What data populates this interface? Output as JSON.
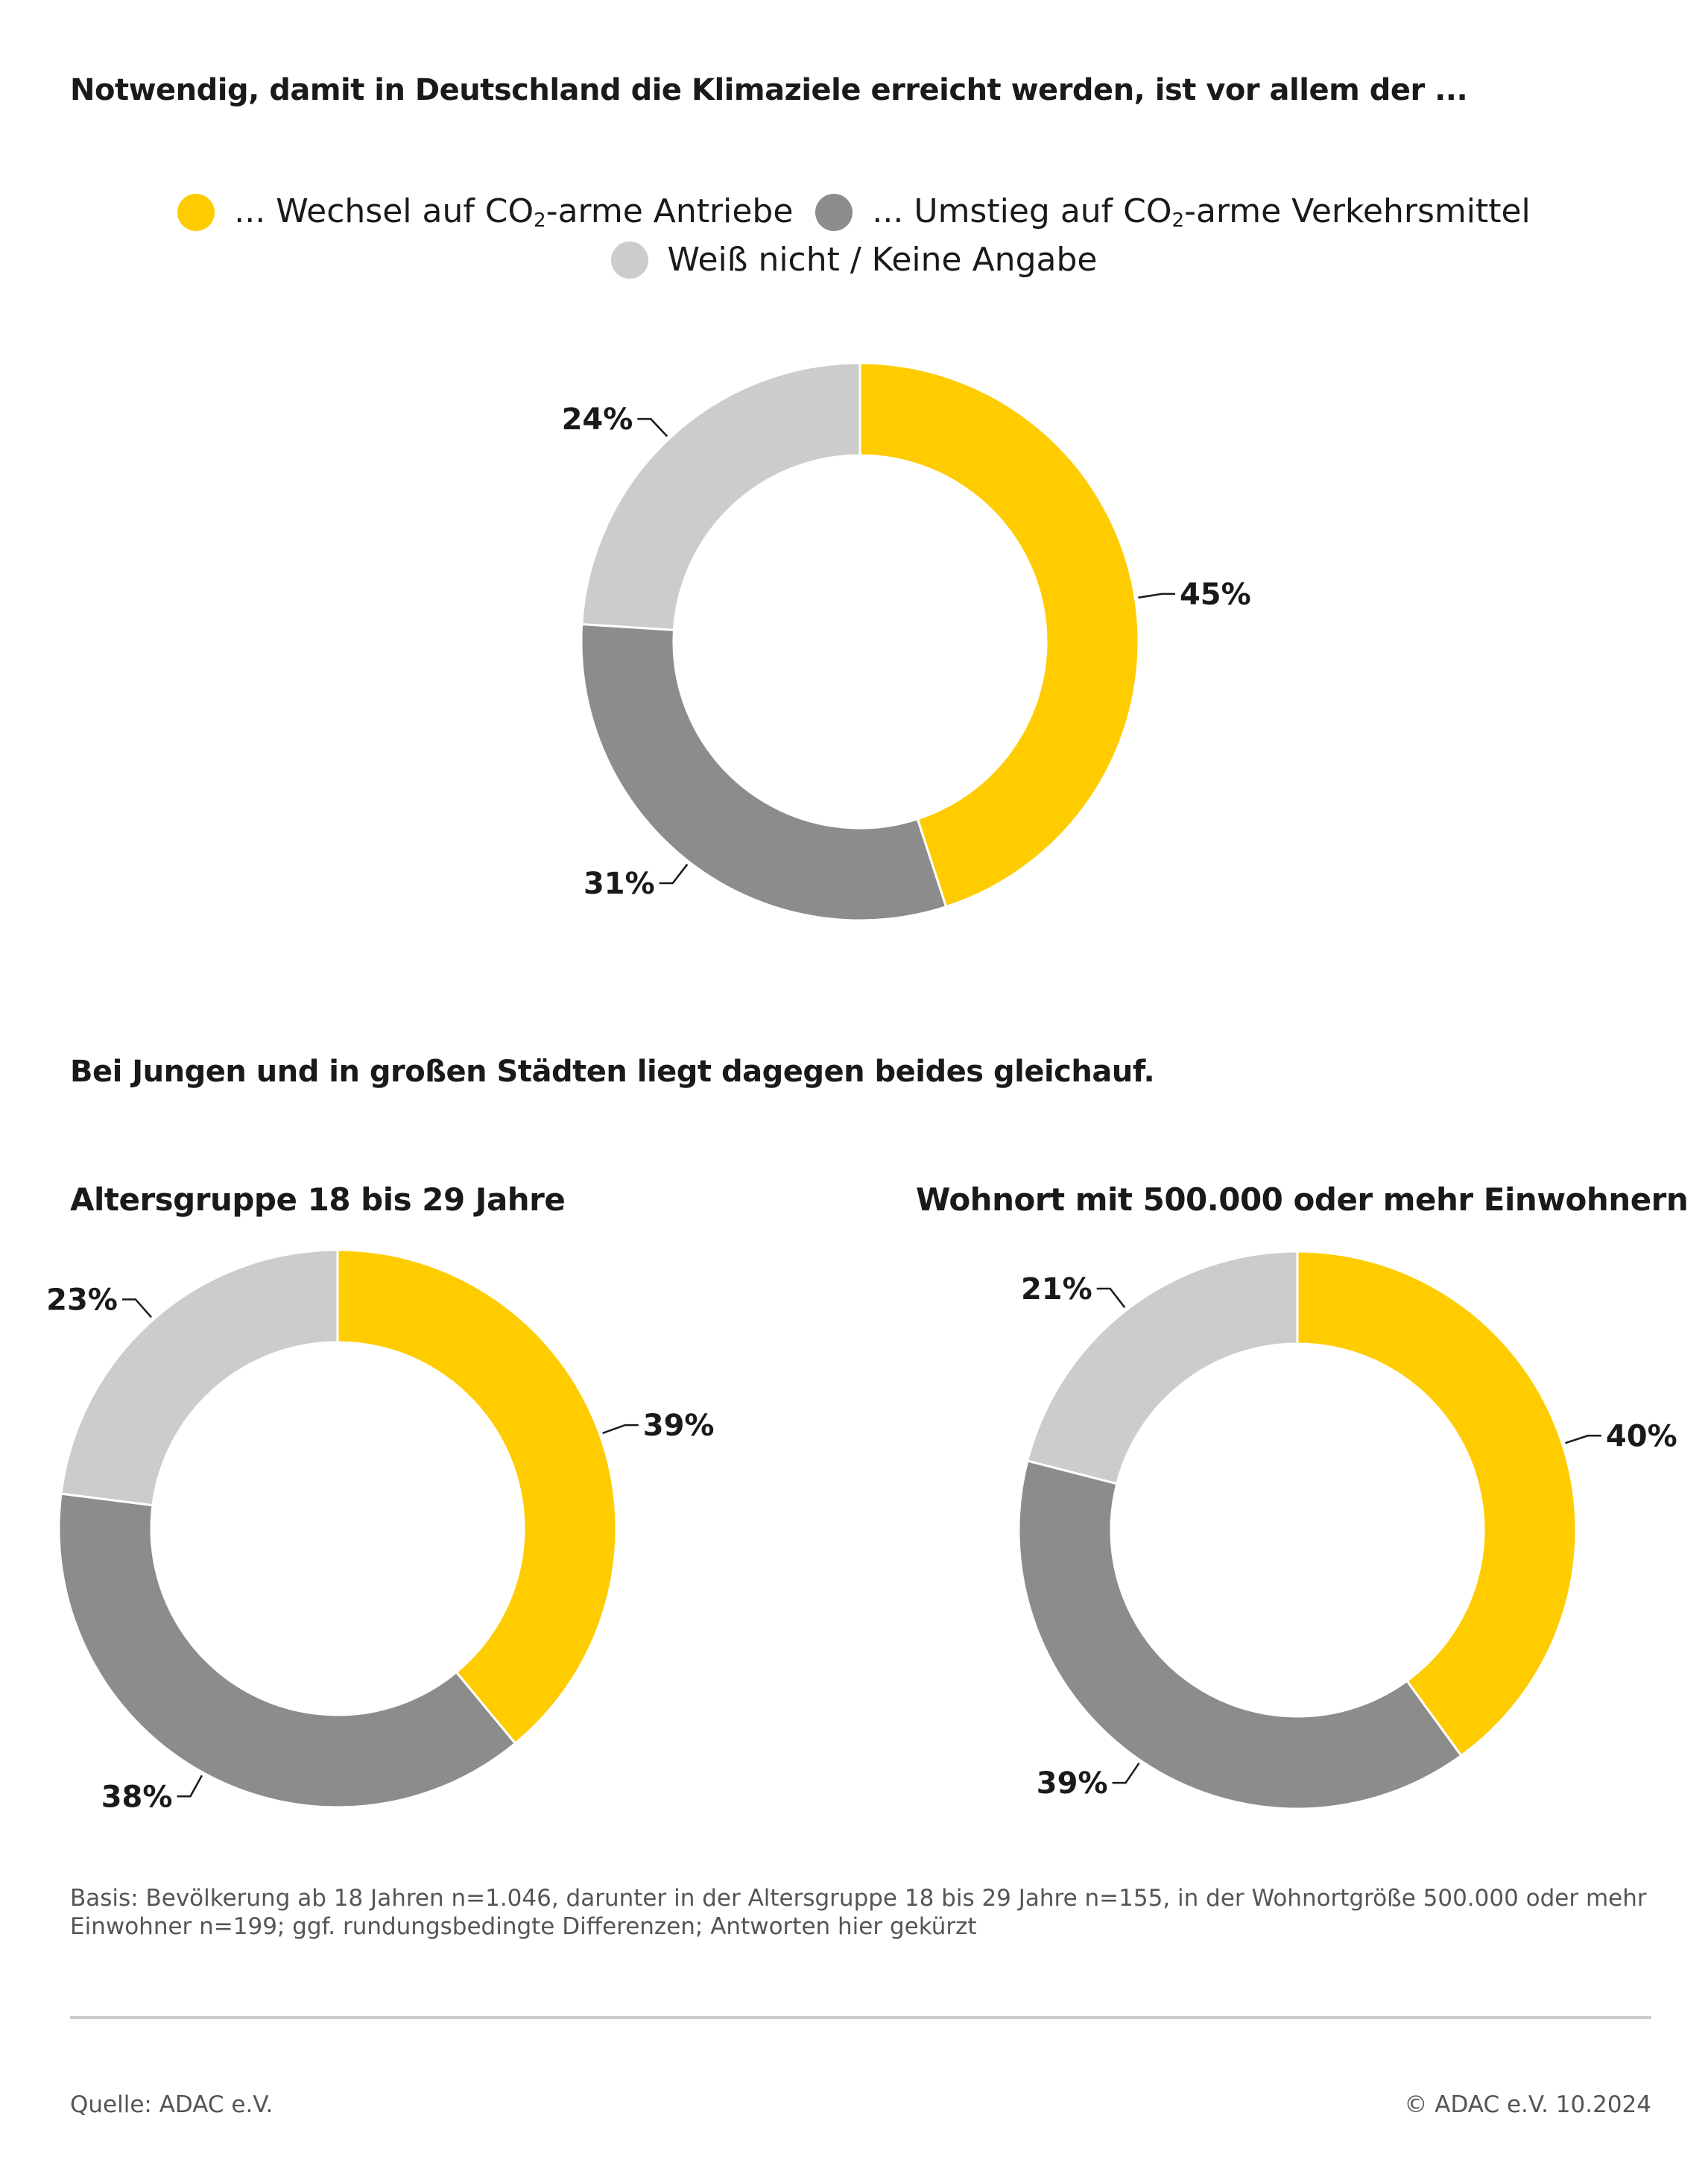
{
  "title": "Notwendig, damit in Deutschland die Klimaziele erreicht werden, ist vor allem der ...",
  "legend": [
    {
      "pre": "... Wechsel auf CO",
      "sub": "2",
      "post": "-arme Antriebe",
      "color": "#FFCC00"
    },
    {
      "pre": "... Umstieg auf CO",
      "sub": "2",
      "post": "-arme Verkehrsmittel",
      "color": "#8C8C8C"
    },
    {
      "pre": "Weiß nicht /  Keine Angabe",
      "sub": "",
      "post": "",
      "color": "#CCCCCC"
    }
  ],
  "subtitle": "Bei Jungen und in großen Städten liegt dagegen beides gleichauf.",
  "chart_data": [
    {
      "type": "pie",
      "title": "",
      "categories": [
        "Wechsel auf CO2-arme Antriebe",
        "Umstieg auf CO2-arme Verkehrsmittel",
        "Weiß nicht / Keine Angabe"
      ],
      "values": [
        45,
        31,
        24
      ],
      "labels": [
        "45%",
        "31%",
        "24%"
      ],
      "colors": [
        "#FFCC00",
        "#8C8C8C",
        "#CCCCCC"
      ],
      "donut": true
    },
    {
      "type": "pie",
      "title": "Altersgruppe 18 bis 29 Jahre",
      "categories": [
        "Wechsel auf CO2-arme Antriebe",
        "Umstieg auf CO2-arme Verkehrsmittel",
        "Weiß nicht / Keine Angabe"
      ],
      "values": [
        39,
        38,
        23
      ],
      "labels": [
        "39%",
        "38%",
        "23%"
      ],
      "colors": [
        "#FFCC00",
        "#8C8C8C",
        "#CCCCCC"
      ],
      "donut": true
    },
    {
      "type": "pie",
      "title": "Wohnort mit 500.000 oder mehr Einwohnern",
      "categories": [
        "Wechsel auf CO2-arme Antriebe",
        "Umstieg auf CO2-arme Verkehrsmittel",
        "Weiß nicht / Keine Angabe"
      ],
      "values": [
        40,
        39,
        21
      ],
      "labels": [
        "40%",
        "39%",
        "21%"
      ],
      "colors": [
        "#FFCC00",
        "#8C8C8C",
        "#CCCCCC"
      ],
      "donut": true
    }
  ],
  "footnote": "Basis: Bevölkerung ab 18 Jahren n=1.046, darunter in der Altersgruppe 18 bis 29 Jahre n=155, in der Wohnortgröße 500.000 oder mehr Einwohner n=199; ggf. rundungsbedingte Differenzen; Antworten hier gekürzt",
  "source": "Quelle: ADAC e.V.",
  "copyright": "© ADAC e.V. 10.2024"
}
